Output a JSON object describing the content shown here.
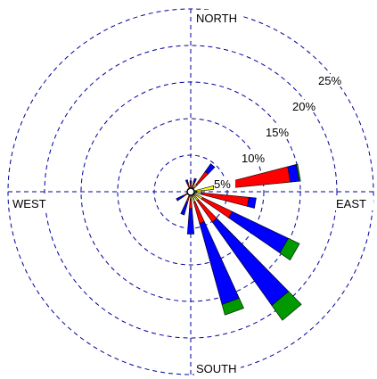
{
  "chart_data": {
    "type": "wind-rose",
    "direction_labels": {
      "north": "NORTH",
      "south": "SOUTH",
      "east": "EAST",
      "west": "WEST"
    },
    "ring_labels": [
      "5%",
      "10%",
      "15%",
      "20%",
      "25%"
    ],
    "ring_values": [
      5,
      10,
      15,
      20,
      25
    ],
    "rmax": 25,
    "bin_colors": [
      "#ffff00",
      "#ff0000",
      "#0000ff",
      "#009900"
    ],
    "sector_width_deg": 9,
    "directions": [
      {
        "angle": 0,
        "values": [
          0.5,
          0.7,
          0.3,
          0
        ]
      },
      {
        "angle": 20,
        "values": [
          0.6,
          0.8,
          0.5,
          0
        ]
      },
      {
        "angle": 40,
        "values": [
          1.2,
          2.2,
          1.3,
          0
        ]
      },
      {
        "angle": 80,
        "values": [
          3.2,
          10.5,
          1.2,
          0.2
        ]
      },
      {
        "angle": 100,
        "values": [
          1.5,
          6.5,
          1.0,
          0
        ]
      },
      {
        "angle": 120,
        "values": [
          1.8,
          4.5,
          8.5,
          1.7
        ]
      },
      {
        "angle": 140,
        "values": [
          1.5,
          3.6,
          14.0,
          2.5
        ]
      },
      {
        "angle": 160,
        "values": [
          1.5,
          3.0,
          11.5,
          1.5
        ]
      },
      {
        "angle": 180,
        "values": [
          1.0,
          1.3,
          3.5,
          0
        ]
      },
      {
        "angle": 200,
        "values": [
          0.5,
          1.0,
          1.8,
          0
        ]
      },
      {
        "angle": 240,
        "values": [
          0.4,
          0.8,
          1.0,
          0
        ]
      },
      {
        "angle": 340,
        "values": [
          0.4,
          0.8,
          0.5,
          0
        ]
      }
    ]
  }
}
